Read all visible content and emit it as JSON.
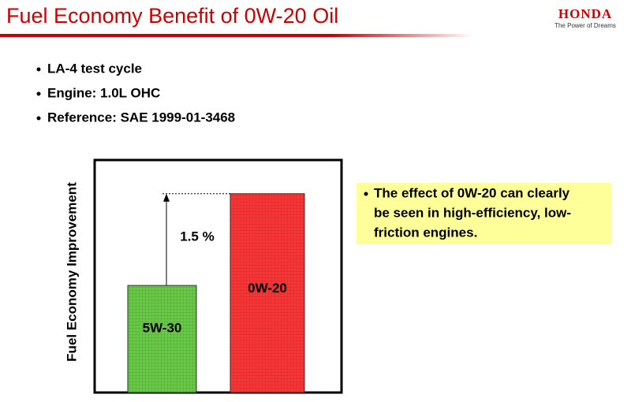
{
  "title": "Fuel Economy Benefit of 0W-20 Oil",
  "logo": "HONDA",
  "tagline": "The Power of Dreams",
  "bullets": [
    "LA-4 test cycle",
    "Engine: 1.0L OHC",
    "Reference: SAE 1999-01-3468"
  ],
  "note": [
    "The effect of 0W-20 can clearly",
    "be seen in high-efficiency, low-",
    "friction engines."
  ],
  "chart_data": {
    "type": "bar",
    "y_label": "Fuel Economy Improvement",
    "categories": [
      "5W-30",
      "0W-20"
    ],
    "values": [
      0,
      1.5
    ],
    "colors": [
      "#66cc44",
      "#ff3333"
    ],
    "ylim": [
      -1.75,
      2.05
    ],
    "annotation": "1.5 %"
  }
}
